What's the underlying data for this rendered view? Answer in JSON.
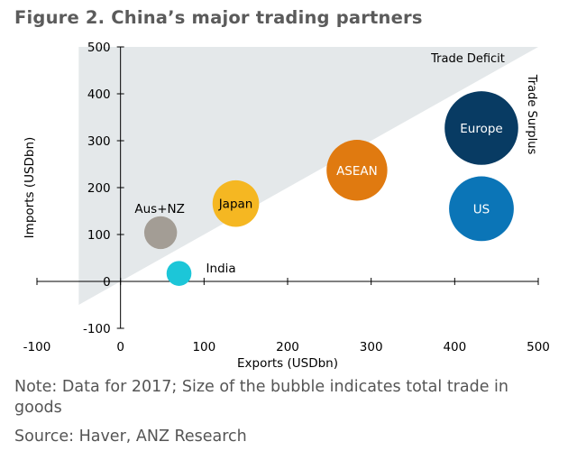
{
  "title": "Figure 2.  China’s major trading partners",
  "note": "Note: Data for 2017; Size of the bubble indicates total trade in goods",
  "source": "Source: Haver, ANZ Research",
  "chart_data": {
    "type": "scatter",
    "xlabel": "Exports (USDbn)",
    "ylabel": "Imports (USDbn)",
    "xlim": [
      -100,
      500
    ],
    "ylim": [
      -100,
      500
    ],
    "xticks": [
      -100,
      0,
      100,
      200,
      300,
      400,
      500
    ],
    "yticks": [
      -100,
      0,
      100,
      200,
      300,
      400,
      500
    ],
    "grid": false,
    "region": {
      "type": "line y = x",
      "above_label": "Trade Deficit",
      "below_label": "Trade Surplus",
      "shade_above": "#e4e8ea"
    },
    "points": [
      {
        "label": "Aus+NZ",
        "x": 48,
        "y": 104,
        "size": 152,
        "color": "#a39d95"
      },
      {
        "label": "Japan",
        "x": 138,
        "y": 166,
        "size": 304,
        "color": "#f5b722"
      },
      {
        "label": "India",
        "x": 70,
        "y": 17,
        "size": 87,
        "color": "#1cc6d8"
      },
      {
        "label": "ASEAN",
        "x": 283,
        "y": 237,
        "size": 520,
        "color": "#e07a10"
      },
      {
        "label": "Europe",
        "x": 432,
        "y": 327,
        "size": 759,
        "color": "#083b63"
      },
      {
        "label": "US",
        "x": 432,
        "y": 155,
        "size": 587,
        "color": "#0b75b7"
      }
    ]
  }
}
